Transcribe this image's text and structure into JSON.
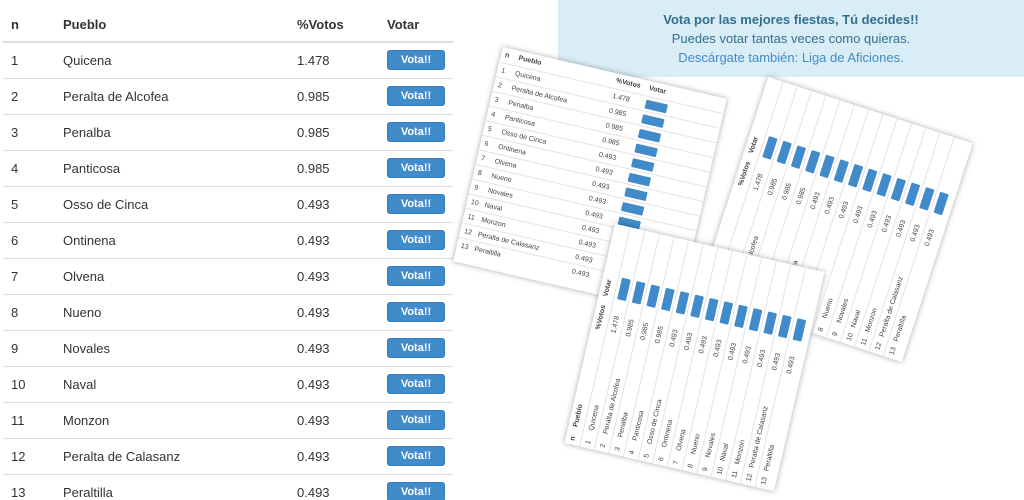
{
  "table": {
    "headers": {
      "n": "n",
      "pueblo": "Pueblo",
      "votos": "%Votos",
      "votar": "Votar"
    },
    "button_label": "Vota!!",
    "rows": [
      {
        "n": "1",
        "pueblo": "Quicena",
        "votos": "1.478"
      },
      {
        "n": "2",
        "pueblo": "Peralta de Alcofea",
        "votos": "0.985"
      },
      {
        "n": "3",
        "pueblo": "Penalba",
        "votos": "0.985"
      },
      {
        "n": "4",
        "pueblo": "Panticosa",
        "votos": "0.985"
      },
      {
        "n": "5",
        "pueblo": "Osso de Cinca",
        "votos": "0.493"
      },
      {
        "n": "6",
        "pueblo": "Ontinena",
        "votos": "0.493"
      },
      {
        "n": "7",
        "pueblo": "Olvena",
        "votos": "0.493"
      },
      {
        "n": "8",
        "pueblo": "Nueno",
        "votos": "0.493"
      },
      {
        "n": "9",
        "pueblo": "Novales",
        "votos": "0.493"
      },
      {
        "n": "10",
        "pueblo": "Naval",
        "votos": "0.493"
      },
      {
        "n": "11",
        "pueblo": "Monzon",
        "votos": "0.493"
      },
      {
        "n": "12",
        "pueblo": "Peralta de Calasanz",
        "votos": "0.493"
      },
      {
        "n": "13",
        "pueblo": "Peraltilla",
        "votos": "0.493"
      }
    ]
  },
  "banner": {
    "title": "Vota por las mejores fiestas, Tú decides!!",
    "line2": "Puedes votar tantas veces como quieras.",
    "line3": "Descárgate también: Liga de Aficiones."
  },
  "colors": {
    "button": "#428bca",
    "banner_bg": "#d9edf7",
    "banner_text": "#31708f"
  }
}
